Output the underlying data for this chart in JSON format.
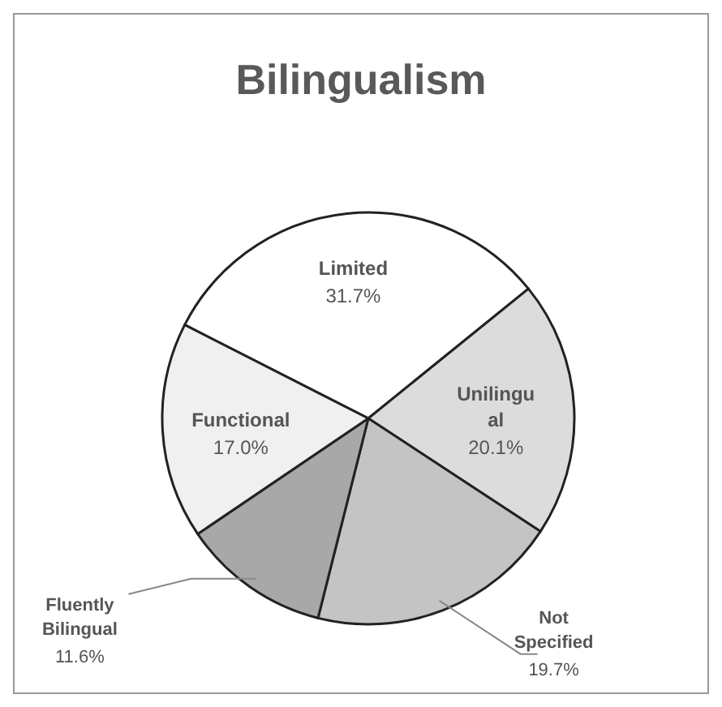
{
  "chart_data": {
    "type": "pie",
    "title": "Bilingualism",
    "categories": [
      "Limited",
      "Unilingual",
      "Not Specified",
      "Fluently Bilingual",
      "Functional"
    ],
    "values": [
      31.7,
      20.1,
      19.7,
      11.6,
      17.0
    ],
    "value_labels": [
      "31.7%",
      "20.1%",
      "19.7%",
      "11.6%",
      "17.0%"
    ],
    "colors": [
      "#ffffff",
      "#dcdcdc",
      "#c4c4c4",
      "#a8a8a8",
      "#f0f0f0"
    ],
    "legend": false
  }
}
